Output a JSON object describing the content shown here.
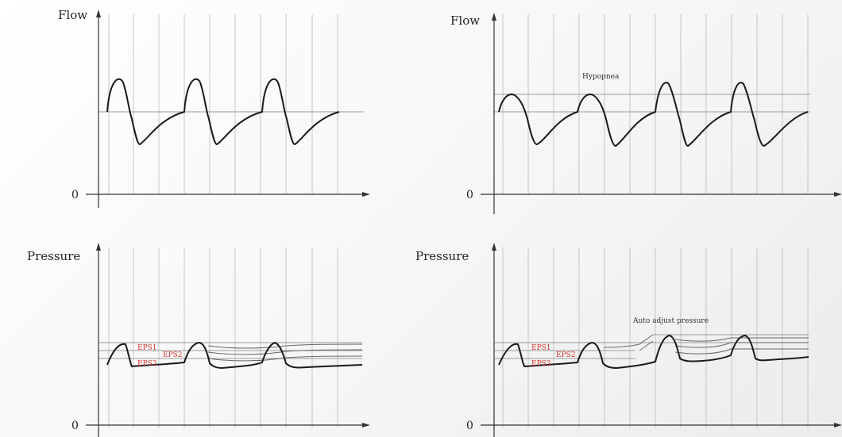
{
  "panels": {
    "top_left": {
      "axis_title": "Flow",
      "zero": "0",
      "annotation": ""
    },
    "top_right": {
      "axis_title": "Flow",
      "zero": "0",
      "annotation": "Hypopnea"
    },
    "bottom_left": {
      "axis_title": "Pressure",
      "zero": "0",
      "annotation": "",
      "eps": [
        "EPS1",
        "EPS2",
        "EPS3"
      ]
    },
    "bottom_right": {
      "axis_title": "Pressure",
      "zero": "0",
      "annotation": "Auto adjust pressure",
      "eps": [
        "EPS1",
        "EPS2",
        "EPS3"
      ]
    }
  },
  "colors": {
    "eps_label": "#d8322b",
    "wave": "#1a1a1a",
    "grid": "#b9b9b9"
  }
}
